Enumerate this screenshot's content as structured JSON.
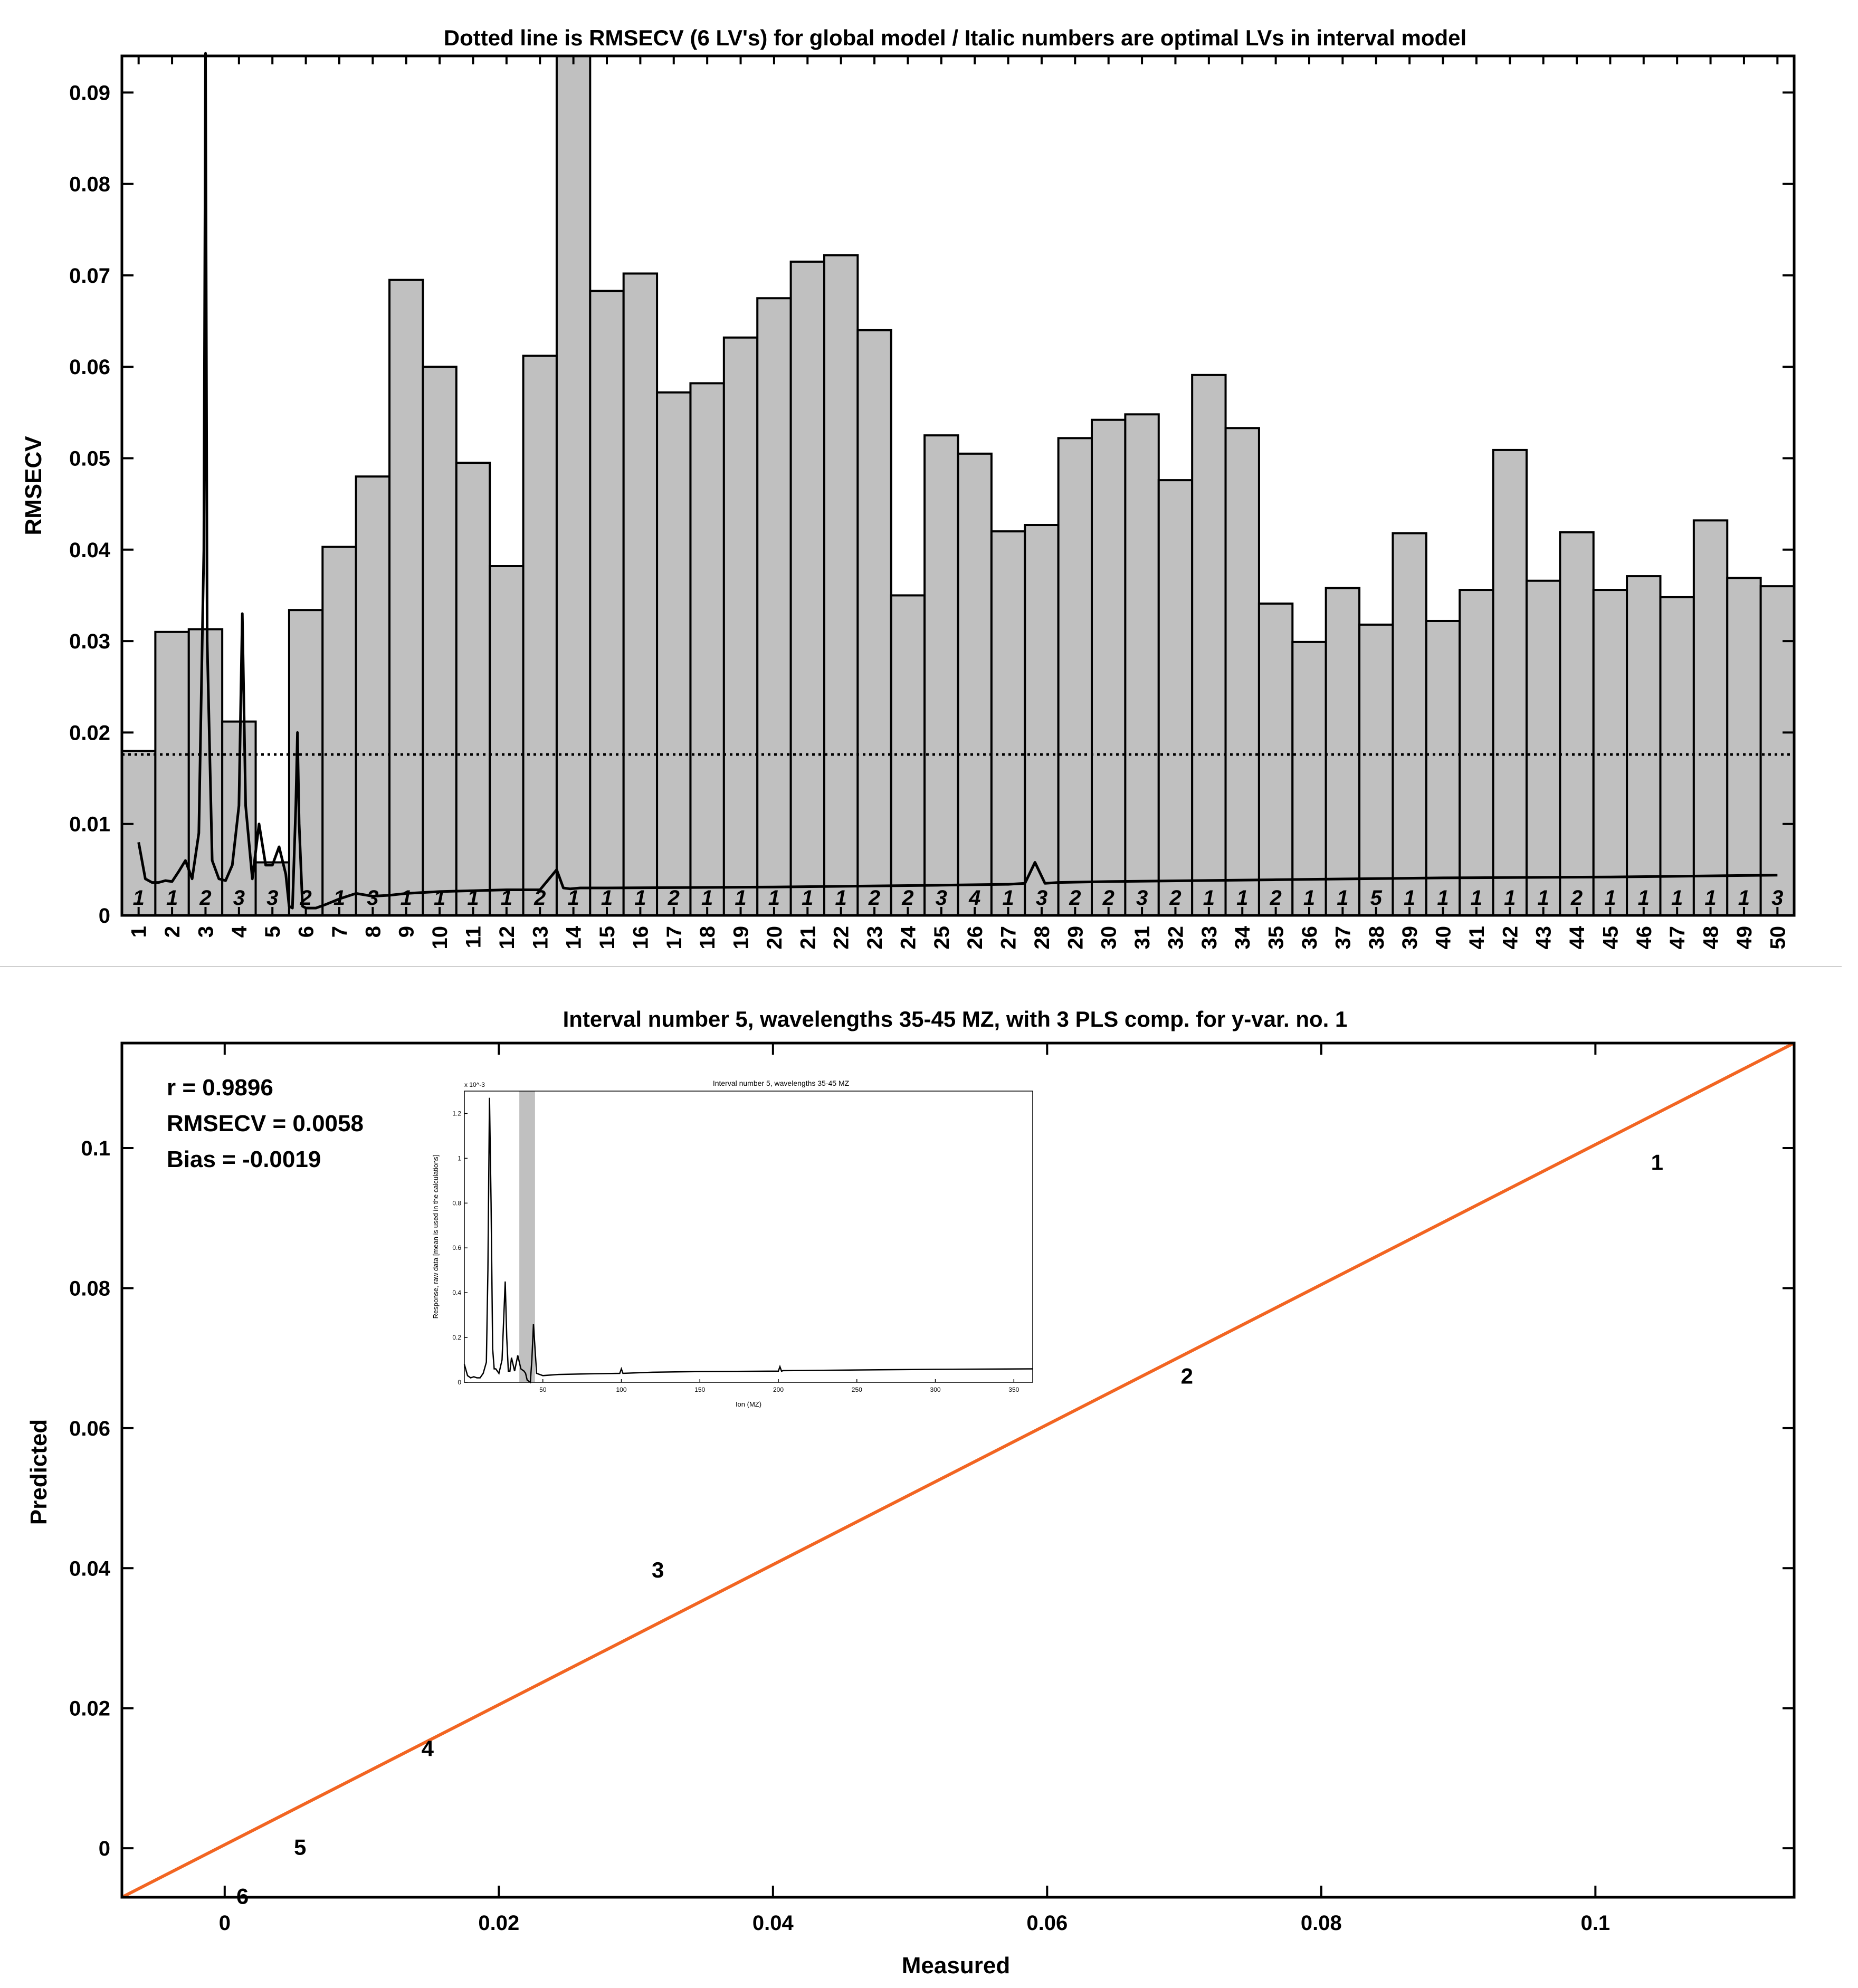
{
  "chart_data": [
    {
      "type": "bar",
      "title": "Dotted line is RMSECV (6 LV's) for global model / Italic numbers are optimal LVs in interval model",
      "ylabel": "RMSECV",
      "xlabel": "",
      "ylim": [
        0,
        0.094
      ],
      "yticks": [
        0,
        0.01,
        0.02,
        0.03,
        0.04,
        0.05,
        0.06,
        0.07,
        0.08,
        0.09
      ],
      "ytick_labels": [
        "0",
        "0.01",
        "0.02",
        "0.03",
        "0.04",
        "0.05",
        "0.06",
        "0.07",
        "0.08",
        "0.09"
      ],
      "categories": [
        "1",
        "2",
        "3",
        "4",
        "5",
        "6",
        "7",
        "8",
        "9",
        "10",
        "11",
        "12",
        "13",
        "14",
        "15",
        "16",
        "17",
        "18",
        "19",
        "20",
        "21",
        "22",
        "23",
        "24",
        "25",
        "26",
        "27",
        "28",
        "29",
        "30",
        "31",
        "32",
        "33",
        "34",
        "35",
        "36",
        "37",
        "38",
        "39",
        "40",
        "41",
        "42",
        "43",
        "44",
        "45",
        "46",
        "47",
        "48",
        "49",
        "50"
      ],
      "values": [
        0.018,
        0.031,
        0.0313,
        0.0212,
        0.0058,
        0.0334,
        0.0403,
        0.048,
        0.0695,
        0.06,
        0.0495,
        0.0382,
        0.0612,
        0.094,
        0.0683,
        0.0702,
        0.0572,
        0.0582,
        0.0632,
        0.0675,
        0.0715,
        0.0722,
        0.064,
        0.035,
        0.0525,
        0.0505,
        0.042,
        0.0427,
        0.0522,
        0.0542,
        0.0548,
        0.0476,
        0.0591,
        0.0533,
        0.0341,
        0.0299,
        0.0358,
        0.0318,
        0.0418,
        0.0322,
        0.0356,
        0.0509,
        0.0366,
        0.0419,
        0.0356,
        0.0371,
        0.0348,
        0.0432,
        0.0369,
        0.036
      ],
      "optimal_lvs": [
        "1",
        "1",
        "2",
        "3",
        "3",
        "2",
        "1",
        "3",
        "1",
        "1",
        "1",
        "1",
        "2",
        "1",
        "1",
        "1",
        "2",
        "1",
        "1",
        "1",
        "1",
        "1",
        "2",
        "2",
        "3",
        "4",
        "1",
        "3",
        "2",
        "2",
        "3",
        "2",
        "1",
        "1",
        "2",
        "1",
        "1",
        "5",
        "1",
        "1",
        "1",
        "1",
        "1",
        "2",
        "1",
        "1",
        "1",
        "1",
        "1",
        "3"
      ],
      "global_rmsecv": 0.0176,
      "spectrum_overlay": {
        "description": "mean raw spectrum (scaled)",
        "x_interval": [
          1,
          1.2,
          1.4,
          1.6,
          1.8,
          2,
          2.2,
          2.4,
          2.6,
          2.8,
          2.95,
          3,
          3.05,
          3.2,
          3.4,
          3.6,
          3.8,
          4,
          4.1,
          4.2,
          4.4,
          4.6,
          4.8,
          5,
          5.2,
          5.4,
          5.5,
          5.6,
          5.7,
          5.75,
          5.8,
          5.9,
          6,
          6.3,
          6.6,
          7,
          7.5,
          8,
          8.5,
          9,
          10,
          11,
          12,
          13,
          13.5,
          13.7,
          13.9,
          14.2,
          15,
          20,
          25,
          27,
          27.5,
          27.8,
          28.1,
          28.5,
          30,
          35,
          40,
          45,
          50
        ],
        "y": [
          0.008,
          0.004,
          0.0036,
          0.0036,
          0.0038,
          0.0037,
          0.0048,
          0.006,
          0.004,
          0.009,
          0.04,
          0.095,
          0.03,
          0.006,
          0.004,
          0.0038,
          0.0055,
          0.012,
          0.033,
          0.012,
          0.004,
          0.01,
          0.0055,
          0.0055,
          0.0075,
          0.0045,
          0.001,
          0.0008,
          0.012,
          0.02,
          0.01,
          0.001,
          0.0008,
          0.0008,
          0.0012,
          0.0018,
          0.0024,
          0.0021,
          0.0022,
          0.0024,
          0.0026,
          0.0027,
          0.0028,
          0.0028,
          0.005,
          0.003,
          0.0029,
          0.003,
          0.003,
          0.0031,
          0.0033,
          0.0034,
          0.0035,
          0.0058,
          0.0035,
          0.0036,
          0.0037,
          0.0039,
          0.0041,
          0.0042,
          0.0044
        ]
      }
    },
    {
      "type": "scatter",
      "title": "Interval number 5, wavelengths 35-45 MZ, with 3 PLS comp. for y-var. no. 1",
      "xlabel": "Measured",
      "ylabel": "Predicted",
      "xlim": [
        -0.0075,
        0.1145
      ],
      "ylim": [
        -0.007,
        0.115
      ],
      "xticks": [
        0,
        0.02,
        0.04,
        0.06,
        0.08,
        0.1
      ],
      "xtick_labels": [
        "0",
        "0.02",
        "0.04",
        "0.06",
        "0.08",
        "0.1"
      ],
      "yticks": [
        0,
        0.02,
        0.04,
        0.06,
        0.08,
        0.1
      ],
      "ytick_labels": [
        "0",
        "0.02",
        "0.04",
        "0.06",
        "0.08",
        "0.1"
      ],
      "points": [
        {
          "label": "1",
          "x": 0.1045,
          "y": 0.098
        },
        {
          "label": "2",
          "x": 0.0702,
          "y": 0.0675
        },
        {
          "label": "3",
          "x": 0.0316,
          "y": 0.0398
        },
        {
          "label": "4",
          "x": 0.0148,
          "y": 0.0143
        },
        {
          "label": "5",
          "x": 0.0055,
          "y": 0.0002
        },
        {
          "label": "6",
          "x": 0.0013,
          "y": -0.0068
        }
      ],
      "fit_line": {
        "x": [
          -0.0075,
          0.1145
        ],
        "y": [
          -0.007,
          0.115
        ],
        "color": "#f26522"
      },
      "stats": {
        "r": "r = 0.9896",
        "rmsecv": "RMSECV = 0.0058",
        "bias": "Bias = -0.0019"
      }
    },
    {
      "type": "line",
      "title": "Interval number 5, wavelengths 35-45 MZ",
      "xlabel": "Ion (MZ)",
      "ylabel": "Response, raw data [mean is used in the calculations]",
      "exponent_label": "x 10^-3",
      "xlim": [
        0,
        362
      ],
      "ylim": [
        0,
        1.3
      ],
      "xticks": [
        50,
        100,
        150,
        200,
        250,
        300,
        350
      ],
      "xtick_labels": [
        "50",
        "100",
        "150",
        "200",
        "250",
        "300",
        "350"
      ],
      "yticks": [
        0,
        0.2,
        0.4,
        0.6,
        0.8,
        1,
        1.2
      ],
      "ytick_labels": [
        "0",
        "0.2",
        "0.4",
        "0.6",
        "0.8",
        "1",
        "1.2"
      ],
      "highlight_interval": [
        35,
        45
      ],
      "x": [
        0,
        2,
        4,
        6,
        8,
        10,
        12,
        14,
        15,
        16,
        17,
        18,
        19,
        20,
        22,
        24,
        26,
        27,
        28,
        29,
        30,
        32,
        34,
        36,
        38,
        39,
        40,
        41,
        42,
        43,
        44,
        46,
        50,
        60,
        80,
        99,
        100,
        101,
        120,
        150,
        200,
        201,
        202,
        203,
        220,
        250,
        300,
        362
      ],
      "y": [
        0.08,
        0.03,
        0.02,
        0.025,
        0.02,
        0.02,
        0.04,
        0.09,
        0.5,
        1.27,
        0.8,
        0.15,
        0.06,
        0.06,
        0.04,
        0.1,
        0.45,
        0.2,
        0.05,
        0.05,
        0.11,
        0.05,
        0.12,
        0.06,
        0.05,
        0.04,
        0.01,
        0.005,
        0.0,
        0.1,
        0.26,
        0.04,
        0.03,
        0.035,
        0.038,
        0.04,
        0.06,
        0.04,
        0.045,
        0.048,
        0.05,
        0.07,
        0.05,
        0.052,
        0.053,
        0.055,
        0.058,
        0.06
      ]
    }
  ]
}
